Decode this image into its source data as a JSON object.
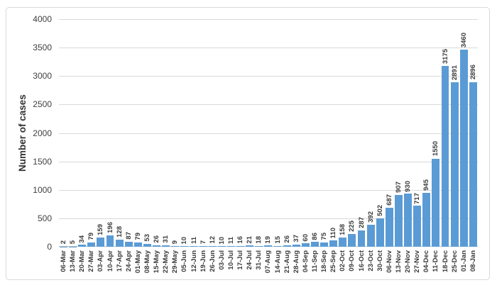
{
  "chart_data": {
    "type": "bar",
    "title": "",
    "xlabel": "",
    "ylabel": "Number of cases",
    "ylim": [
      0,
      4000
    ],
    "ytick_interval": 500,
    "yticks": [
      4000,
      3500,
      3000,
      2500,
      2000,
      1500,
      1000,
      500,
      0
    ],
    "grid": "horizontal",
    "legend": "none",
    "data_labels": "rotated vertical, above each bar",
    "x_tick_labels": "rotated vertical, weekly dates",
    "categories": [
      "06-Mar",
      "13-Mar",
      "20-Mar",
      "27-Mar",
      "03-Apr",
      "10-Apr",
      "17-Apr",
      "24-Apr",
      "01-May",
      "08-May",
      "15-May",
      "22-May",
      "29-May",
      "05-Jun",
      "12-Jun",
      "19-Jun",
      "26-Jun",
      "03-Jul",
      "10-Jul",
      "17-Jul",
      "24-Jul",
      "31-Jul",
      "07-Aug",
      "14-Aug",
      "21-Aug",
      "28-Aug",
      "04-Sep",
      "11-Sep",
      "18-Sep",
      "25-Sep",
      "02-Oct",
      "09-Oct",
      "16-Oct",
      "23-Oct",
      "30-Oct",
      "06-Nov",
      "13-Nov",
      "20-Nov",
      "27-Nov",
      "04-Dec",
      "11-Dec",
      "18-Dec",
      "25-Dec",
      "01-Jan",
      "08-Jan"
    ],
    "values": [
      2,
      5,
      34,
      79,
      159,
      196,
      128,
      87,
      79,
      53,
      26,
      31,
      9,
      10,
      11,
      7,
      12,
      10,
      11,
      16,
      21,
      18,
      19,
      15,
      26,
      37,
      60,
      86,
      75,
      110,
      158,
      225,
      287,
      392,
      502,
      687,
      907,
      930,
      717,
      945,
      1550,
      3175,
      2891,
      3460,
      2896
    ],
    "colors": {
      "bar_fill": "#5b9bd5",
      "gridline": "#d9d9d9",
      "axis_line": "#bfbfbf",
      "frame_border": "#d9d9d9",
      "label_text": "#3a3a3a",
      "background": "#ffffff"
    }
  }
}
